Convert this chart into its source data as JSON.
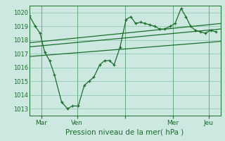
{
  "title": "",
  "xlabel": "Pression niveau de la mer( hPa )",
  "ylabel": "",
  "bg_color": "#cce8e0",
  "grid_color": "#88c4aa",
  "line_color": "#1a6e2a",
  "ylim": [
    1012.5,
    1020.5
  ],
  "xlim": [
    0,
    16
  ],
  "yticks": [
    1013,
    1014,
    1015,
    1016,
    1017,
    1018,
    1019,
    1020
  ],
  "xtick_positions": [
    1,
    4,
    8,
    12,
    15
  ],
  "xtick_labels": [
    "Mar",
    "Ven",
    "",
    "Mer",
    "Jeu"
  ],
  "vline_positions": [
    0,
    1,
    4,
    8,
    12,
    15,
    16
  ],
  "series1_x": [
    0,
    0.5,
    0.9,
    1.3,
    1.7,
    2.1,
    2.7,
    3.2,
    3.6,
    4.1,
    4.6,
    5.0,
    5.4,
    5.9,
    6.3,
    6.7,
    7.1,
    7.6,
    8.1,
    8.5,
    8.9,
    9.3,
    9.7,
    10.1,
    10.5,
    10.9,
    11.3,
    11.8,
    12.2,
    12.7,
    13.1,
    13.5,
    13.9,
    14.3,
    14.7,
    15.2,
    15.6
  ],
  "series1_y": [
    1019.8,
    1019.0,
    1018.5,
    1017.1,
    1016.5,
    1015.5,
    1013.5,
    1013.0,
    1013.2,
    1013.2,
    1014.7,
    1015.0,
    1015.3,
    1016.2,
    1016.5,
    1016.5,
    1016.2,
    1017.5,
    1019.5,
    1019.7,
    1019.2,
    1019.3,
    1019.2,
    1019.1,
    1019.0,
    1018.8,
    1018.8,
    1019.0,
    1019.2,
    1020.3,
    1019.7,
    1019.0,
    1018.7,
    1018.6,
    1018.5,
    1018.7,
    1018.6
  ],
  "trend1_x": [
    0,
    16
  ],
  "trend1_y": [
    1017.5,
    1018.8
  ],
  "trend2_x": [
    0,
    16
  ],
  "trend2_y": [
    1017.8,
    1019.2
  ],
  "trend3_x": [
    0,
    16
  ],
  "trend3_y": [
    1016.8,
    1017.9
  ]
}
